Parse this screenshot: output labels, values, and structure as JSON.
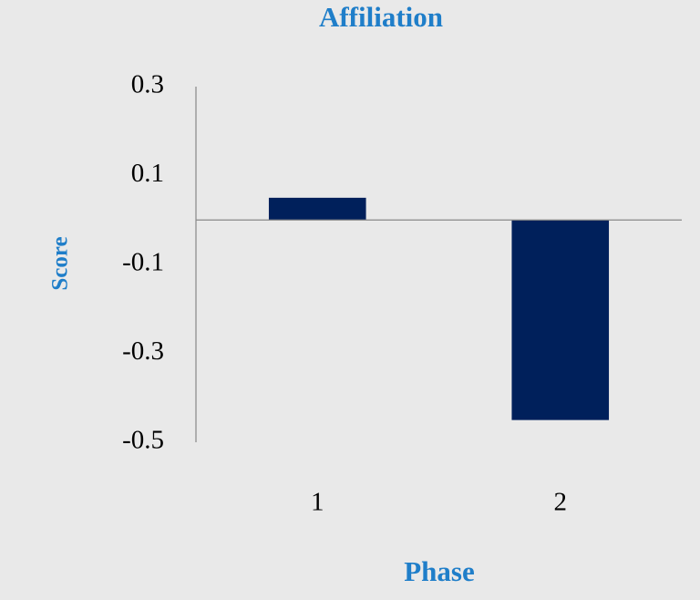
{
  "chart_data": {
    "type": "bar",
    "title": "Affiliation",
    "x_label": "Phase",
    "y_label": "Score",
    "categories": [
      "1",
      "2"
    ],
    "values": [
      0.05,
      -0.45
    ],
    "color": "#00205b",
    "ylim": [
      -0.5,
      0.3
    ],
    "yticks": [
      -0.5,
      -0.3,
      -0.1,
      0.1,
      0.3
    ],
    "grid": false
  }
}
